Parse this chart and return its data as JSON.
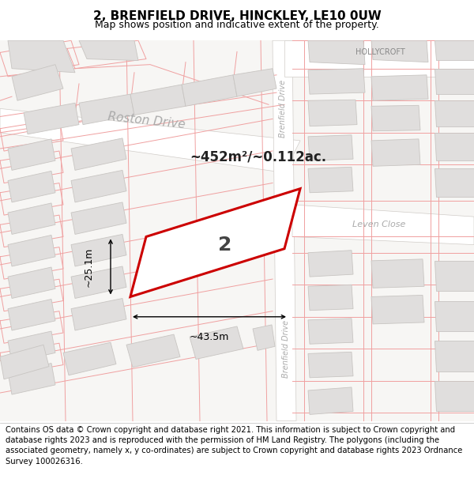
{
  "title": "2, BRENFIELD DRIVE, HINCKLEY, LE10 0UW",
  "subtitle": "Map shows position and indicative extent of the property.",
  "footer": "Contains OS data © Crown copyright and database right 2021. This information is subject to Crown copyright and database rights 2023 and is reproduced with the permission of HM Land Registry. The polygons (including the associated geometry, namely x, y co-ordinates) are subject to Crown copyright and database rights 2023 Ordnance Survey 100026316.",
  "map_bg": "#f7f6f4",
  "road_color": "#ffffff",
  "road_outline": "#d0ccc8",
  "building_fill": "#e0dedd",
  "building_edge": "#c8c5c2",
  "highlight_fill": "#ffffff",
  "highlight_edge": "#cc0000",
  "red_line_color": "#f0a0a0",
  "title_fontsize": 11,
  "subtitle_fontsize": 9,
  "footer_fontsize": 7.2,
  "area_text": "~452m²/~0.112ac.",
  "label_2": "2",
  "dim_width": "~43.5m",
  "dim_height": "~25.1m",
  "street_roston": "Roston Drive",
  "street_brenfield1": "Brenfield Drive",
  "street_brenfield2": "Brenfield Drive",
  "street_hollycroft": "HOLLYCROFT",
  "street_leven": "Leven Close"
}
